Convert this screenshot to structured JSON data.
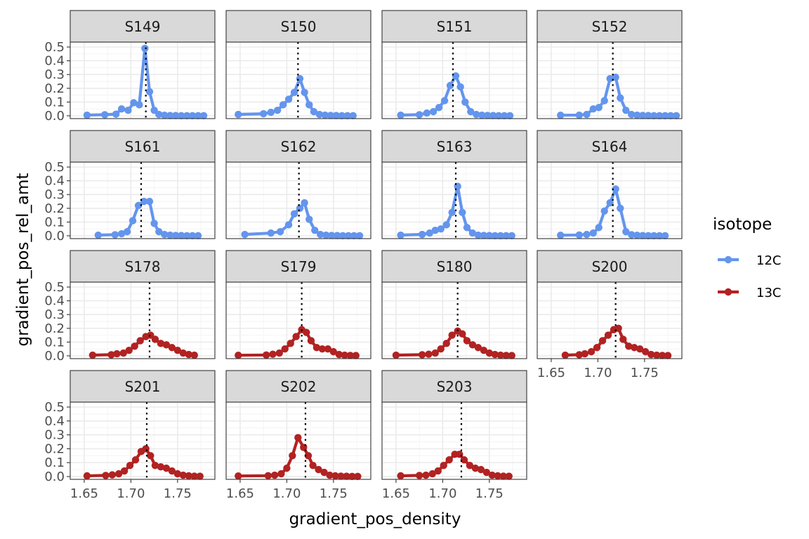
{
  "chart_data": {
    "type": "line",
    "xlabel": "gradient_pos_density",
    "ylabel": "gradient_pos_rel_amt",
    "ylim": [
      0,
      0.5
    ],
    "y_ticks": [
      "0.0",
      "0.1",
      "0.2",
      "0.3",
      "0.4",
      "0.5"
    ],
    "y_tick_values": [
      0,
      0.1,
      0.2,
      0.3,
      0.4,
      0.5
    ],
    "xlim": [
      1.635,
      1.79
    ],
    "x_ticks": [
      "1.65",
      "1.70",
      "1.75"
    ],
    "x_tick_values": [
      1.65,
      1.7,
      1.75
    ],
    "grid": true,
    "legend": {
      "title": "isotope",
      "position": "right",
      "entries": [
        {
          "name": "12C",
          "color": "#6495ed"
        },
        {
          "name": "13C",
          "color": "#b22222"
        }
      ]
    },
    "panels": [
      {
        "label": "S149",
        "isotope": "12C",
        "center": 1.716,
        "x": [
          1.653,
          1.672,
          1.684,
          1.69,
          1.697,
          1.703,
          1.709,
          1.715,
          1.72,
          1.725,
          1.73,
          1.736,
          1.742,
          1.748,
          1.754,
          1.76,
          1.766,
          1.772,
          1.778
        ],
        "y": [
          0.005,
          0.008,
          0.012,
          0.05,
          0.04,
          0.095,
          0.08,
          0.49,
          0.175,
          0.04,
          0.01,
          0.004,
          0.002,
          0.002,
          0.001,
          0.001,
          0.001,
          0.001,
          0.001
        ]
      },
      {
        "label": "S150",
        "isotope": "12C",
        "center": 1.712,
        "x": [
          1.648,
          1.675,
          1.683,
          1.69,
          1.696,
          1.702,
          1.708,
          1.714,
          1.719,
          1.724,
          1.729,
          1.735,
          1.741,
          1.747,
          1.753,
          1.759,
          1.765,
          1.771
        ],
        "y": [
          0.01,
          0.015,
          0.025,
          0.04,
          0.08,
          0.12,
          0.17,
          0.27,
          0.17,
          0.08,
          0.03,
          0.01,
          0.005,
          0.003,
          0.002,
          0.001,
          0.001,
          0.001
        ]
      },
      {
        "label": "S151",
        "isotope": "12C",
        "center": 1.711,
        "x": [
          1.655,
          1.675,
          1.683,
          1.69,
          1.696,
          1.702,
          1.708,
          1.714,
          1.719,
          1.724,
          1.73,
          1.736,
          1.742,
          1.748,
          1.754,
          1.76,
          1.766,
          1.772
        ],
        "y": [
          0.005,
          0.008,
          0.02,
          0.03,
          0.06,
          0.11,
          0.22,
          0.29,
          0.21,
          0.1,
          0.03,
          0.01,
          0.005,
          0.003,
          0.002,
          0.001,
          0.001,
          0.001
        ]
      },
      {
        "label": "S152",
        "isotope": "12C",
        "center": 1.716,
        "x": [
          1.66,
          1.68,
          1.688,
          1.695,
          1.701,
          1.707,
          1.713,
          1.719,
          1.724,
          1.73,
          1.736,
          1.742,
          1.748,
          1.754,
          1.76,
          1.766,
          1.772,
          1.778,
          1.784
        ],
        "y": [
          0.004,
          0.005,
          0.01,
          0.05,
          0.06,
          0.11,
          0.27,
          0.28,
          0.13,
          0.04,
          0.01,
          0.005,
          0.003,
          0.002,
          0.001,
          0.001,
          0.001,
          0.001,
          0.001
        ]
      },
      {
        "label": "S161",
        "isotope": "12C",
        "center": 1.711,
        "x": [
          1.665,
          1.683,
          1.69,
          1.696,
          1.702,
          1.708,
          1.714,
          1.72,
          1.725,
          1.73,
          1.736,
          1.742,
          1.748,
          1.754,
          1.76,
          1.766,
          1.772
        ],
        "y": [
          0.005,
          0.008,
          0.015,
          0.03,
          0.11,
          0.22,
          0.25,
          0.25,
          0.09,
          0.03,
          0.01,
          0.005,
          0.003,
          0.002,
          0.001,
          0.001,
          0.001
        ]
      },
      {
        "label": "S162",
        "isotope": "12C",
        "center": 1.713,
        "x": [
          1.655,
          1.683,
          1.693,
          1.702,
          1.708,
          1.714,
          1.719,
          1.724,
          1.73,
          1.736,
          1.742,
          1.748,
          1.754,
          1.76,
          1.766,
          1.772,
          1.778
        ],
        "y": [
          0.01,
          0.02,
          0.03,
          0.08,
          0.16,
          0.2,
          0.24,
          0.12,
          0.04,
          0.01,
          0.005,
          0.003,
          0.002,
          0.001,
          0.001,
          0.001,
          0.001
        ]
      },
      {
        "label": "S163",
        "isotope": "12C",
        "center": 1.714,
        "x": [
          1.655,
          1.678,
          1.686,
          1.692,
          1.698,
          1.704,
          1.71,
          1.716,
          1.721,
          1.726,
          1.732,
          1.738,
          1.744,
          1.75,
          1.756,
          1.762,
          1.768,
          1.774
        ],
        "y": [
          0.005,
          0.01,
          0.02,
          0.04,
          0.05,
          0.08,
          0.17,
          0.36,
          0.17,
          0.06,
          0.02,
          0.005,
          0.003,
          0.002,
          0.001,
          0.001,
          0.001,
          0.001
        ]
      },
      {
        "label": "S164",
        "isotope": "12C",
        "center": 1.716,
        "x": [
          1.66,
          1.68,
          1.688,
          1.695,
          1.701,
          1.707,
          1.713,
          1.719,
          1.724,
          1.73,
          1.736,
          1.742,
          1.748,
          1.754,
          1.76,
          1.766,
          1.772
        ],
        "y": [
          0.004,
          0.006,
          0.01,
          0.02,
          0.06,
          0.18,
          0.24,
          0.34,
          0.2,
          0.03,
          0.008,
          0.004,
          0.002,
          0.001,
          0.001,
          0.001,
          0.001
        ]
      },
      {
        "label": "S178",
        "isotope": "13C",
        "center": 1.72,
        "x": [
          1.659,
          1.679,
          1.685,
          1.692,
          1.698,
          1.704,
          1.71,
          1.716,
          1.721,
          1.726,
          1.732,
          1.738,
          1.744,
          1.75,
          1.756,
          1.762,
          1.768
        ],
        "y": [
          0.005,
          0.008,
          0.015,
          0.02,
          0.04,
          0.07,
          0.11,
          0.14,
          0.15,
          0.12,
          0.09,
          0.08,
          0.06,
          0.04,
          0.02,
          0.01,
          0.005
        ]
      },
      {
        "label": "S179",
        "isotope": "13C",
        "center": 1.716,
        "x": [
          1.648,
          1.678,
          1.685,
          1.692,
          1.698,
          1.704,
          1.71,
          1.716,
          1.721,
          1.726,
          1.732,
          1.738,
          1.744,
          1.75,
          1.756,
          1.762,
          1.768,
          1.774
        ],
        "y": [
          0.004,
          0.006,
          0.012,
          0.02,
          0.05,
          0.09,
          0.14,
          0.19,
          0.17,
          0.11,
          0.06,
          0.05,
          0.05,
          0.03,
          0.01,
          0.005,
          0.003,
          0.002
        ]
      },
      {
        "label": "S180",
        "isotope": "13C",
        "center": 1.716,
        "x": [
          1.65,
          1.678,
          1.685,
          1.692,
          1.698,
          1.704,
          1.71,
          1.716,
          1.721,
          1.726,
          1.732,
          1.738,
          1.744,
          1.75,
          1.756,
          1.762,
          1.768,
          1.774
        ],
        "y": [
          0.005,
          0.008,
          0.012,
          0.02,
          0.05,
          0.09,
          0.15,
          0.18,
          0.16,
          0.11,
          0.08,
          0.06,
          0.04,
          0.02,
          0.01,
          0.005,
          0.003,
          0.002
        ]
      },
      {
        "label": "S200",
        "isotope": "13C",
        "center": 1.719,
        "x": [
          1.665,
          1.68,
          1.686,
          1.693,
          1.699,
          1.705,
          1.711,
          1.717,
          1.722,
          1.727,
          1.733,
          1.739,
          1.745,
          1.751,
          1.757,
          1.763,
          1.769,
          1.775
        ],
        "y": [
          0.005,
          0.008,
          0.015,
          0.03,
          0.06,
          0.11,
          0.15,
          0.19,
          0.2,
          0.12,
          0.07,
          0.06,
          0.05,
          0.03,
          0.01,
          0.005,
          0.003,
          0.002
        ]
      },
      {
        "label": "S201",
        "isotope": "13C",
        "center": 1.717,
        "x": [
          1.653,
          1.673,
          1.68,
          1.687,
          1.693,
          1.699,
          1.705,
          1.711,
          1.716,
          1.721,
          1.726,
          1.732,
          1.738,
          1.744,
          1.75,
          1.756,
          1.762,
          1.768,
          1.774
        ],
        "y": [
          0.005,
          0.008,
          0.012,
          0.02,
          0.04,
          0.08,
          0.12,
          0.18,
          0.2,
          0.15,
          0.08,
          0.07,
          0.06,
          0.04,
          0.02,
          0.01,
          0.005,
          0.003,
          0.002
        ]
      },
      {
        "label": "S202",
        "isotope": "13C",
        "center": 1.72,
        "x": [
          1.648,
          1.68,
          1.687,
          1.694,
          1.7,
          1.706,
          1.712,
          1.718,
          1.723,
          1.728,
          1.734,
          1.74,
          1.746,
          1.752,
          1.758,
          1.764,
          1.77,
          1.776
        ],
        "y": [
          0.004,
          0.006,
          0.01,
          0.02,
          0.06,
          0.15,
          0.28,
          0.21,
          0.15,
          0.08,
          0.05,
          0.03,
          0.01,
          0.005,
          0.003,
          0.002,
          0.001,
          0.001
        ]
      },
      {
        "label": "S203",
        "isotope": "13C",
        "center": 1.72,
        "x": [
          1.655,
          1.675,
          1.682,
          1.689,
          1.695,
          1.701,
          1.707,
          1.713,
          1.718,
          1.723,
          1.729,
          1.735,
          1.741,
          1.747,
          1.753,
          1.759,
          1.765,
          1.771
        ],
        "y": [
          0.005,
          0.008,
          0.01,
          0.02,
          0.04,
          0.08,
          0.12,
          0.16,
          0.16,
          0.12,
          0.08,
          0.06,
          0.05,
          0.03,
          0.01,
          0.005,
          0.003,
          0.002
        ]
      }
    ]
  }
}
